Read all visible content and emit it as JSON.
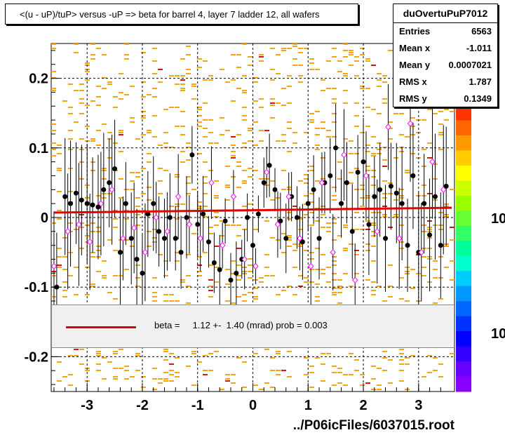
{
  "title": "<(u - uP)/tuP> versus  -uP => beta for barrel 4, layer 7 ladder 12, all wafers",
  "stats": {
    "name": "duOvertuPuP7012",
    "rows": [
      {
        "label": "Entries",
        "value": "6563"
      },
      {
        "label": "Mean x",
        "value": "-1.011"
      },
      {
        "label": "Mean y",
        "value": "0.0007021"
      },
      {
        "label": "RMS x",
        "value": "1.787"
      },
      {
        "label": "RMS y",
        "value": "0.1349"
      }
    ]
  },
  "legend": {
    "text": "beta =     1.12 +-  1.40 (mrad) prob = 0.003",
    "line_color": "#e00000"
  },
  "footer": "../P06icFiles/6037015.root",
  "colors": {
    "fit": "#e00000",
    "marker_black": "#000000",
    "marker_open": "#ff00ff",
    "bins": "#ffa500"
  },
  "chart_data": {
    "type": "scatter",
    "xlim": [
      -3.65,
      3.65
    ],
    "ylim": [
      -0.25,
      0.25
    ],
    "xticks": [
      -3,
      -2,
      -1,
      0,
      1,
      2,
      3
    ],
    "yticks": [
      -0.2,
      -0.1,
      0,
      0.1,
      0.2
    ],
    "ytick_labels": [
      "-0.2",
      "-0.1",
      "0",
      "0.1",
      "0.2"
    ],
    "grid": true,
    "zscale_labels": [
      "10",
      "10"
    ],
    "fit_line": {
      "x": [
        -3.6,
        3.6
      ],
      "y": [
        0.007,
        0.014
      ]
    },
    "series": [
      {
        "marker": "filled-circle",
        "x": [
          -3.55,
          -3.4,
          -3.3,
          -3.2,
          -3.1,
          -3.0,
          -2.9,
          -2.8,
          -2.7,
          -2.6,
          -2.5,
          -2.4,
          -2.3,
          -2.2,
          -2.1,
          -2.0,
          -1.9,
          -1.8,
          -1.7,
          -1.6,
          -1.5,
          -1.4,
          -1.3,
          -1.2,
          -1.1,
          -1.0,
          -0.9,
          -0.8,
          -0.7,
          -0.6,
          -0.5,
          -0.4,
          -0.3,
          -0.2,
          -0.1,
          0.0,
          0.1,
          0.2,
          0.3,
          0.4,
          0.5,
          0.6,
          0.7,
          0.8,
          0.9,
          1.0,
          1.1,
          1.2,
          1.3,
          1.4,
          1.5,
          1.6,
          1.7,
          1.8,
          1.9,
          2.0,
          2.1,
          2.2,
          2.3,
          2.4,
          2.5,
          2.6,
          2.7,
          2.8,
          2.9,
          3.0,
          3.1,
          3.2,
          3.3,
          3.4,
          3.5
        ],
        "y": [
          -0.1,
          0.03,
          0.02,
          0.035,
          0.025,
          0.02,
          0.018,
          0.015,
          0.04,
          0.05,
          0.07,
          -0.05,
          0.02,
          -0.03,
          -0.06,
          -0.08,
          0.005,
          0.02,
          -0.02,
          -0.03,
          0.0,
          -0.03,
          -0.05,
          0.0,
          0.09,
          -0.01,
          0.005,
          -0.035,
          -0.065,
          -0.075,
          -0.005,
          -0.09,
          -0.08,
          -0.06,
          0.0,
          -0.04,
          0.005,
          0.05,
          0.075,
          0.04,
          -0.005,
          -0.03,
          0.03,
          0.0,
          -0.035,
          0.02,
          0.04,
          -0.03,
          0.05,
          0.06,
          0.1,
          0.02,
          0.05,
          -0.02,
          0.065,
          0.08,
          -0.01,
          0.03,
          0.04,
          -0.03,
          0.045,
          0.035,
          0.02,
          -0.04,
          0.06,
          -0.05,
          0.02,
          -0.025,
          0.03,
          -0.04,
          0.045
        ]
      },
      {
        "marker": "open-diamond",
        "x": [
          -3.6,
          -3.35,
          -3.15,
          -2.95,
          -2.75,
          -2.55,
          -2.35,
          -2.15,
          -1.95,
          -1.75,
          -1.55,
          -1.35,
          -1.15,
          -0.95,
          -0.75,
          -0.55,
          -0.35,
          -0.15,
          0.05,
          0.25,
          0.45,
          0.65,
          0.85,
          1.05,
          1.25,
          1.45,
          1.65,
          1.85,
          2.05,
          2.25,
          2.45,
          2.65,
          2.85,
          3.05,
          3.25,
          3.45
        ],
        "y": [
          -0.07,
          -0.02,
          -0.01,
          -0.035,
          0.02,
          0.04,
          -0.03,
          -0.015,
          -0.05,
          0.0,
          -0.02,
          0.03,
          -0.01,
          -0.03,
          0.05,
          -0.04,
          0.03,
          -0.06,
          -0.07,
          0.065,
          -0.01,
          0.03,
          -0.03,
          -0.07,
          0.05,
          -0.05,
          0.09,
          -0.09,
          0.06,
          -0.02,
          0.13,
          -0.03,
          0.135,
          -0.05,
          0.08,
          0.04
        ]
      }
    ]
  }
}
